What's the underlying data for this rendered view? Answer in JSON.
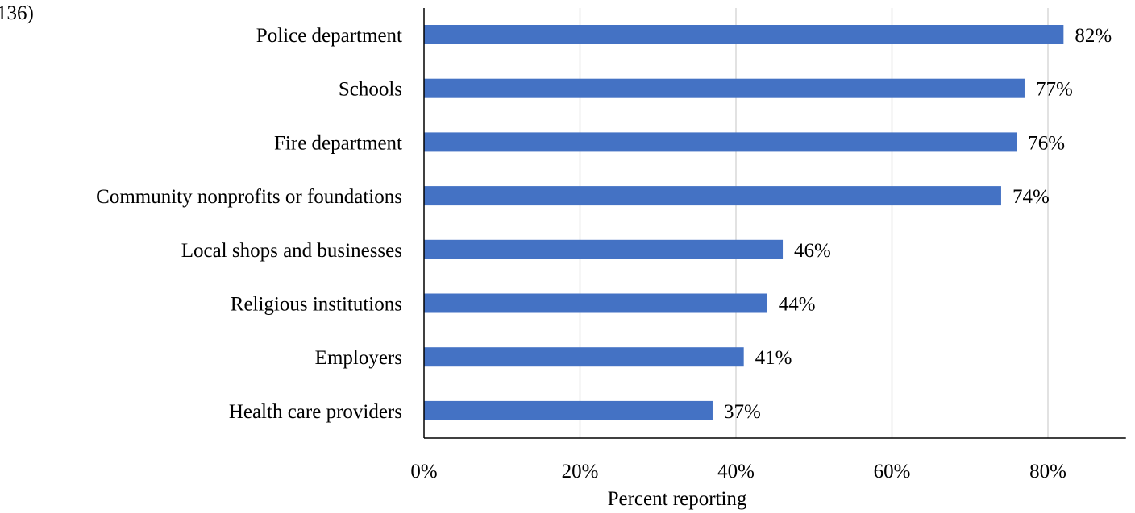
{
  "header_fragment": "136)",
  "colors": {
    "bar": "#4472C4",
    "grid": "#D9D9D9",
    "axis": "#000000",
    "text": "#000000"
  },
  "chart_data": {
    "type": "bar",
    "orientation": "horizontal",
    "categories": [
      "Police department",
      "Schools",
      "Fire department",
      "Community nonprofits or foundations",
      "Local shops and businesses",
      "Religious institutions",
      "Employers",
      "Health care providers"
    ],
    "values": [
      82,
      77,
      76,
      74,
      46,
      44,
      41,
      37
    ],
    "data_labels": [
      "82%",
      "77%",
      "76%",
      "74%",
      "46%",
      "44%",
      "41%",
      "37%"
    ],
    "xlabel": "Percent reporting",
    "ylabel": "",
    "xlim": [
      0,
      90
    ],
    "x_ticks": [
      0,
      20,
      40,
      60,
      80
    ],
    "x_tick_labels": [
      "0%",
      "20%",
      "40%",
      "60%",
      "80%"
    ],
    "grid": true,
    "legend": "none"
  }
}
